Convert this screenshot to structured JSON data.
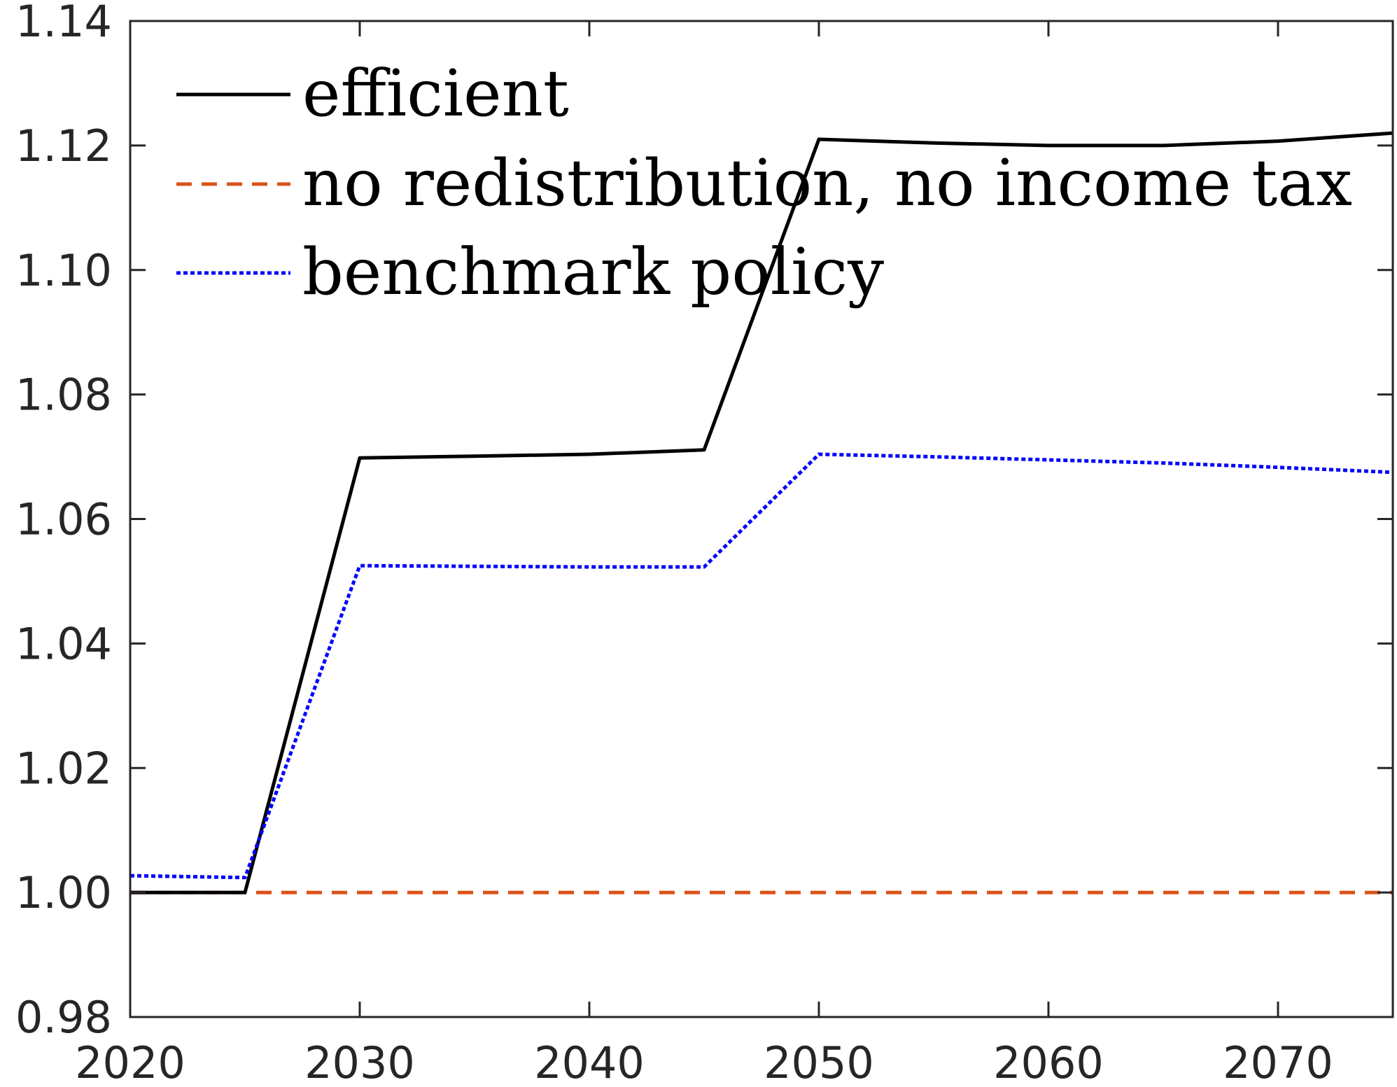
{
  "chart_data": {
    "type": "line",
    "title": "",
    "xlabel": "",
    "ylabel": "",
    "xlim": [
      2020,
      2075
    ],
    "ylim": [
      0.98,
      1.14
    ],
    "xticks": [
      2020,
      2030,
      2040,
      2050,
      2060,
      2070
    ],
    "xtick_labels": [
      "2020",
      "2030",
      "2040",
      "2050",
      "2060",
      "2070"
    ],
    "yticks": [
      0.98,
      1.0,
      1.02,
      1.04,
      1.06,
      1.08,
      1.1,
      1.12,
      1.14
    ],
    "ytick_labels": [
      "0.98",
      "1.00",
      "1.02",
      "1.04",
      "1.06",
      "1.08",
      "1.10",
      "1.12",
      "1.14"
    ],
    "grid": false,
    "legend_position": "top-left",
    "series": [
      {
        "name": "efficient",
        "color": "#000000",
        "style": "solid",
        "x": [
          2020,
          2025,
          2030,
          2035,
          2040,
          2045,
          2050,
          2055,
          2060,
          2065,
          2070,
          2075
        ],
        "y": [
          1.0,
          1.0,
          1.0698,
          1.0701,
          1.0704,
          1.0711,
          1.121,
          1.1204,
          1.12,
          1.12,
          1.1207,
          1.122
        ]
      },
      {
        "name": "no redistribution, no income tax",
        "color": "#D95319",
        "style": "dashed",
        "x": [
          2020,
          2025,
          2030,
          2035,
          2040,
          2045,
          2050,
          2055,
          2060,
          2065,
          2070,
          2075
        ],
        "y": [
          1.0,
          1.0,
          1.0,
          1.0,
          1.0,
          1.0,
          1.0,
          1.0,
          1.0,
          1.0,
          1.0,
          1.0
        ]
      },
      {
        "name": "benchmark policy",
        "color": "#0000FF",
        "style": "dotted",
        "x": [
          2020,
          2025,
          2030,
          2035,
          2040,
          2045,
          2050,
          2055,
          2060,
          2065,
          2070,
          2075
        ],
        "y": [
          1.0027,
          1.0024,
          1.0525,
          1.0524,
          1.0523,
          1.0523,
          1.0704,
          1.07,
          1.0695,
          1.069,
          1.0683,
          1.0675
        ]
      }
    ]
  }
}
